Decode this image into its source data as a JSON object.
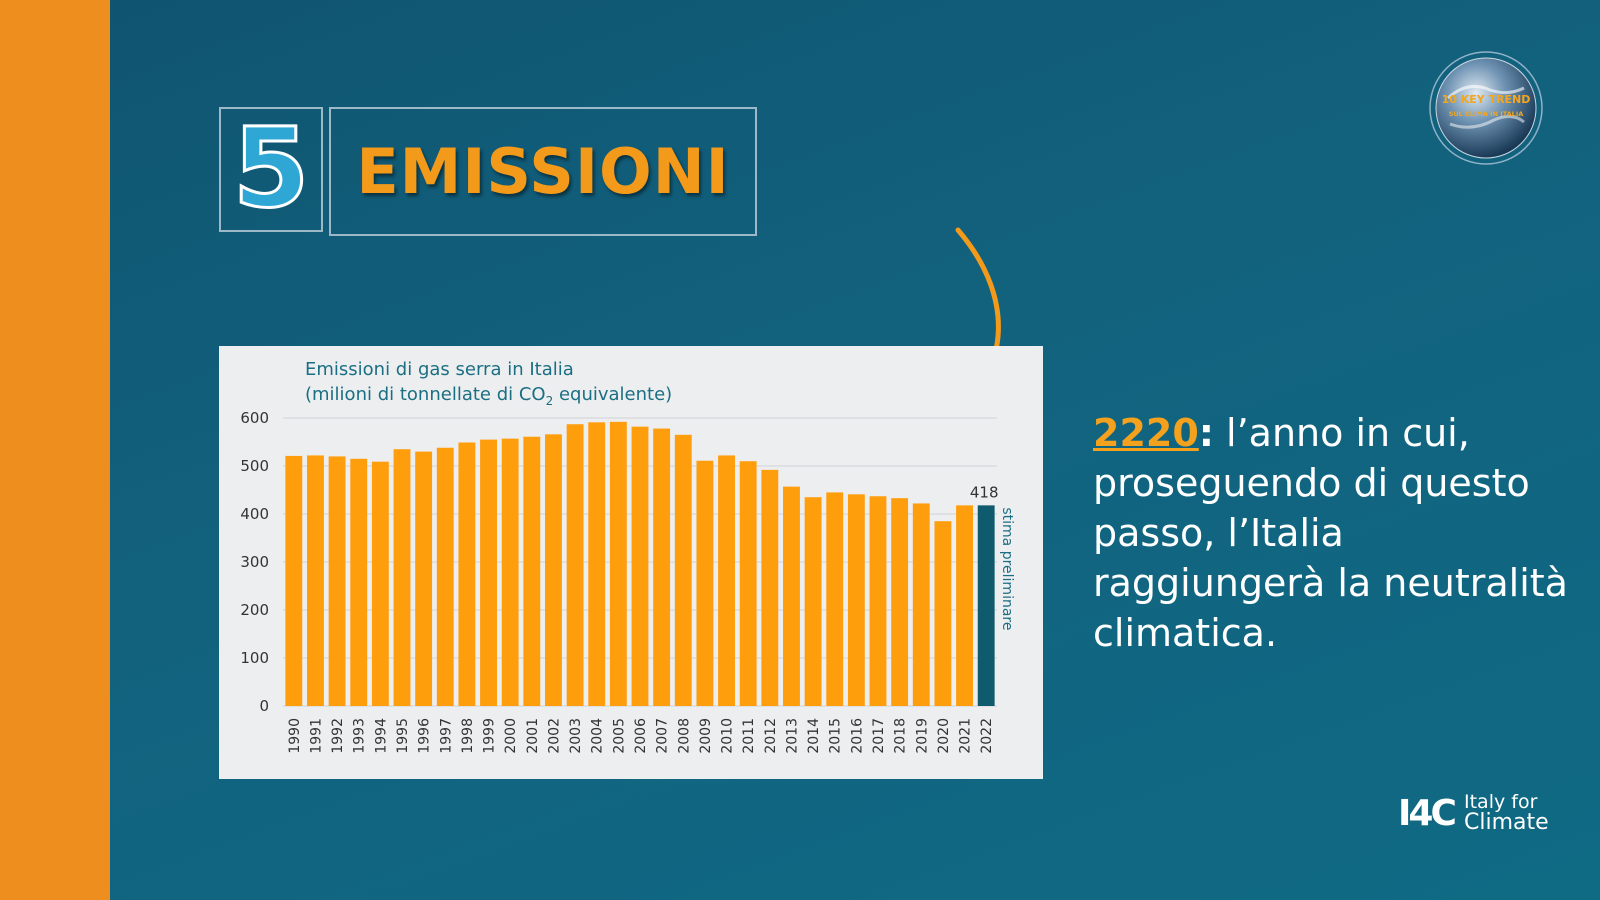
{
  "slide": {
    "number": "5",
    "title": "EMISSIONI"
  },
  "badge": {
    "line1": "10 KEY TREND",
    "line2": "SUL CLIMA IN ITALIA",
    "icon": "globe-icon"
  },
  "callout": {
    "year": "2220",
    "colon": ":",
    "text": " l’anno in cui, proseguendo di questo passo, l’Italia raggiungerà la neutralità climatica."
  },
  "brand": {
    "mark": "I4C",
    "line1": "Italy for",
    "line2": "Climate"
  },
  "colors": {
    "accent": "#ee8e1e",
    "bar": "#ff9e0d",
    "bar_estimate": "#0f5a6c",
    "title_teal": "#1b6f83"
  },
  "chart_data": {
    "type": "bar",
    "title_line1": "Emissioni di gas serra in Italia",
    "title_line2_pre": "(milioni di tonnellate di CO",
    "title_line2_sub": "2",
    "title_line2_post": " equivalente)",
    "ylim": [
      0,
      600
    ],
    "yticks": [
      0,
      100,
      200,
      300,
      400,
      500,
      600
    ],
    "categories": [
      "1990",
      "1991",
      "1992",
      "1993",
      "1994",
      "1995",
      "1996",
      "1997",
      "1998",
      "1999",
      "2000",
      "2001",
      "2002",
      "2003",
      "2004",
      "2005",
      "2006",
      "2007",
      "2008",
      "2009",
      "2010",
      "2011",
      "2012",
      "2013",
      "2014",
      "2015",
      "2016",
      "2017",
      "2018",
      "2019",
      "2020",
      "2021",
      "2022"
    ],
    "values": [
      521,
      522,
      520,
      515,
      509,
      535,
      530,
      538,
      549,
      555,
      557,
      561,
      566,
      587,
      591,
      592,
      582,
      578,
      565,
      511,
      522,
      510,
      492,
      457,
      435,
      445,
      441,
      437,
      433,
      422,
      385,
      418,
      418
    ],
    "estimate_index": 32,
    "estimate_label": "stima preliminare",
    "data_label": "418",
    "grid": true
  }
}
